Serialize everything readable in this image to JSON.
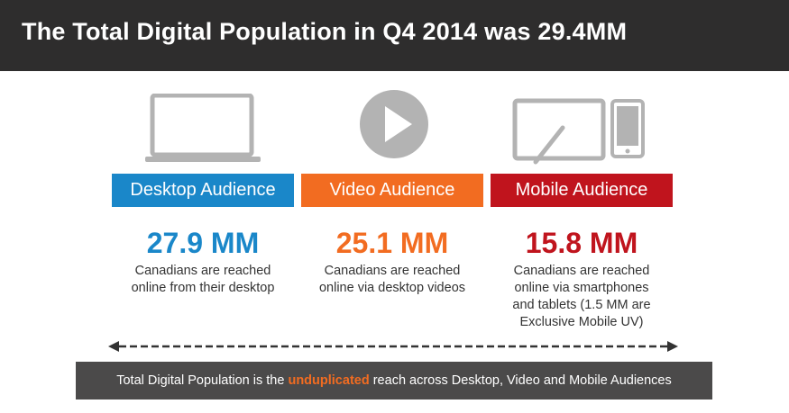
{
  "header": {
    "title": "The Total Digital Population in Q4 2014 was 29.4MM"
  },
  "colors": {
    "desktop": "#1a87c9",
    "video": "#f26c21",
    "mobile": "#c0141d",
    "icon_gray": "#b3b3b3",
    "header_bg": "#2e2d2d",
    "footer_bg": "#4b4a4a"
  },
  "segments": [
    {
      "icon": "laptop-icon",
      "label": "Desktop Audience",
      "value": "27.9 MM",
      "desc_lines": [
        "Canadians are reached",
        "online from their desktop"
      ]
    },
    {
      "icon": "play-icon",
      "label": "Video Audience",
      "value": "25.1 MM",
      "desc_lines": [
        "Canadians are reached",
        "online via desktop videos"
      ]
    },
    {
      "icon": "tablet-phone-icon",
      "label": "Mobile Audience",
      "value": "15.8 MM",
      "desc_lines": [
        "Canadians are reached",
        "online via smartphones",
        "and tablets (1.5 MM are",
        "Exclusive Mobile UV)"
      ]
    }
  ],
  "footer": {
    "before": "Total Digital Population is the ",
    "highlight": "unduplicated",
    "after": " reach across Desktop, Video and Mobile Audiences"
  }
}
